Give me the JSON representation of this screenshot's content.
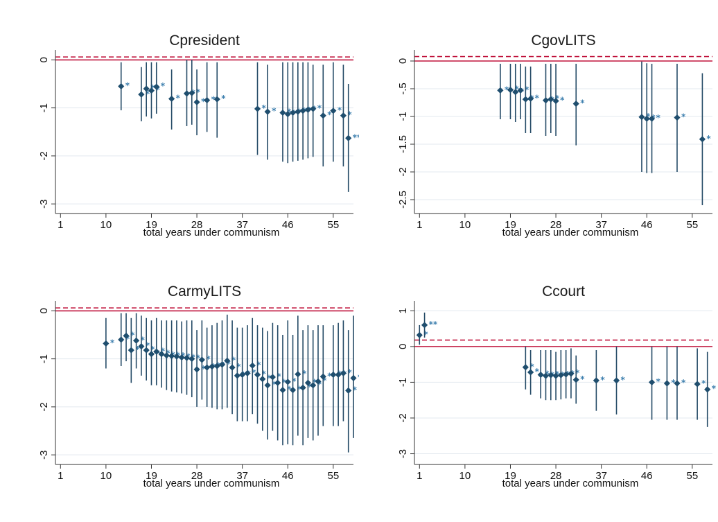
{
  "colors": {
    "marker": "#1f4e6e",
    "ci": "#244a66",
    "ref_solid": "#c0143c",
    "ref_dashed": "#c0143c",
    "grid": "#e3e9ef",
    "frame": "#333333"
  },
  "chart_data": [
    {
      "type": "scatter",
      "title": "Cpresident",
      "xlabel": "total years under communism",
      "ylabel": "",
      "xlim": [
        0,
        59
      ],
      "ylim": [
        -3.2,
        0.15
      ],
      "xticks": [
        1,
        10,
        19,
        28,
        37,
        46,
        55
      ],
      "yticks": [
        0,
        -1,
        -2,
        -3
      ],
      "ytick_labels": [
        "0",
        "-1",
        "-2",
        "-3"
      ],
      "ref_solid": 0,
      "ref_dashed": 0.06,
      "grid": true,
      "points": [
        {
          "x": 13,
          "y": -0.55,
          "lo": -1.05,
          "hi": -0.05,
          "label": "*"
        },
        {
          "x": 17,
          "y": -0.72,
          "lo": -1.28,
          "hi": -0.15,
          "label": "*"
        },
        {
          "x": 18,
          "y": -0.6,
          "lo": -1.18,
          "hi": -0.05,
          "label": "*"
        },
        {
          "x": 19,
          "y": -0.64,
          "lo": -1.22,
          "hi": -0.05,
          "label": "*"
        },
        {
          "x": 20,
          "y": -0.56,
          "lo": -1.12,
          "hi": -0.05,
          "label": "*"
        },
        {
          "x": 23,
          "y": -0.81,
          "lo": -1.45,
          "hi": -0.2,
          "label": "*"
        },
        {
          "x": 26,
          "y": -0.7,
          "lo": -1.38,
          "hi": 0.0,
          "label": "*"
        },
        {
          "x": 27,
          "y": -0.69,
          "lo": -1.35,
          "hi": 0.0,
          "label": "*"
        },
        {
          "x": 28,
          "y": -0.88,
          "lo": -1.57,
          "hi": -0.2,
          "label": "*"
        },
        {
          "x": 30,
          "y": -0.84,
          "lo": -1.5,
          "hi": -0.05,
          "label": "*"
        },
        {
          "x": 32,
          "y": -0.82,
          "lo": -1.62,
          "hi": -0.05,
          "label": "*"
        },
        {
          "x": 40,
          "y": -1.02,
          "lo": -1.98,
          "hi": -0.05,
          "label": "*"
        },
        {
          "x": 42,
          "y": -1.08,
          "lo": -2.08,
          "hi": -0.1,
          "label": "*"
        },
        {
          "x": 45,
          "y": -1.1,
          "lo": -2.12,
          "hi": -0.05,
          "label": "*"
        },
        {
          "x": 46,
          "y": -1.13,
          "lo": -2.15,
          "hi": -0.05,
          "label": "*"
        },
        {
          "x": 47,
          "y": -1.1,
          "lo": -2.12,
          "hi": -0.05,
          "label": "*"
        },
        {
          "x": 48,
          "y": -1.08,
          "lo": -2.1,
          "hi": -0.05,
          "label": "*"
        },
        {
          "x": 49,
          "y": -1.06,
          "lo": -2.08,
          "hi": -0.05,
          "label": "*"
        },
        {
          "x": 50,
          "y": -1.04,
          "lo": -2.05,
          "hi": -0.05,
          "label": "*"
        },
        {
          "x": 51,
          "y": -1.02,
          "lo": -2.02,
          "hi": -0.1,
          "label": "*"
        },
        {
          "x": 53,
          "y": -1.16,
          "lo": -2.22,
          "hi": -0.1,
          "label": "*"
        },
        {
          "x": 55,
          "y": -1.06,
          "lo": -2.12,
          "hi": -0.05,
          "label": "*"
        },
        {
          "x": 57,
          "y": -1.16,
          "lo": -2.22,
          "hi": -0.1,
          "label": "*"
        },
        {
          "x": 58,
          "y": -1.63,
          "lo": -2.75,
          "hi": -0.5,
          "label": "**"
        }
      ]
    },
    {
      "type": "scatter",
      "title": "CgovLITS",
      "xlabel": "total years under communism",
      "ylabel": "",
      "xlim": [
        0,
        59
      ],
      "ylim": [
        -2.75,
        0.15
      ],
      "xticks": [
        1,
        10,
        19,
        28,
        37,
        46,
        55
      ],
      "yticks": [
        0,
        -0.5,
        -1,
        -1.5,
        -2,
        -2.5
      ],
      "ytick_labels": [
        "0",
        "-.5",
        "-1",
        "-1.5",
        "-2",
        "-2.5"
      ],
      "ref_solid": 0,
      "ref_dashed": 0.08,
      "grid": true,
      "points": [
        {
          "x": 17,
          "y": -0.53,
          "lo": -1.05,
          "hi": -0.05,
          "label": "*"
        },
        {
          "x": 19,
          "y": -0.52,
          "lo": -1.05,
          "hi": -0.05,
          "label": "*"
        },
        {
          "x": 20,
          "y": -0.56,
          "lo": -1.1,
          "hi": -0.05,
          "label": "*"
        },
        {
          "x": 21,
          "y": -0.53,
          "lo": -1.05,
          "hi": -0.05,
          "label": "*"
        },
        {
          "x": 22,
          "y": -0.69,
          "lo": -1.3,
          "hi": -0.1,
          "label": "*"
        },
        {
          "x": 23,
          "y": -0.68,
          "lo": -1.3,
          "hi": -0.1,
          "label": "*"
        },
        {
          "x": 26,
          "y": -0.71,
          "lo": -1.35,
          "hi": -0.05,
          "label": "*"
        },
        {
          "x": 27,
          "y": -0.69,
          "lo": -1.3,
          "hi": -0.05,
          "label": "*"
        },
        {
          "x": 28,
          "y": -0.72,
          "lo": -1.35,
          "hi": -0.05,
          "label": "*"
        },
        {
          "x": 32,
          "y": -0.77,
          "lo": -1.52,
          "hi": -0.05,
          "label": "*"
        },
        {
          "x": 45,
          "y": -1.01,
          "lo": -2.0,
          "hi": -0.01,
          "label": "*"
        },
        {
          "x": 46,
          "y": -1.04,
          "lo": -2.02,
          "hi": -0.04,
          "label": "*"
        },
        {
          "x": 47,
          "y": -1.04,
          "lo": -2.02,
          "hi": -0.05,
          "label": "*"
        },
        {
          "x": 52,
          "y": -1.02,
          "lo": -2.0,
          "hi": -0.05,
          "label": "*"
        },
        {
          "x": 57,
          "y": -1.41,
          "lo": -2.6,
          "hi": -0.22,
          "label": "*"
        }
      ]
    },
    {
      "type": "scatter",
      "title": "CarmyLITS",
      "xlabel": "total years under communism",
      "ylabel": "",
      "xlim": [
        0,
        59
      ],
      "ylim": [
        -3.2,
        0.15
      ],
      "xticks": [
        1,
        10,
        19,
        28,
        37,
        46,
        55
      ],
      "yticks": [
        0,
        -1,
        -2,
        -3
      ],
      "ytick_labels": [
        "0",
        "-1",
        "-2",
        "-3"
      ],
      "ref_solid": 0,
      "ref_dashed": 0.06,
      "grid": true,
      "points": [
        {
          "x": 10,
          "y": -0.68,
          "lo": -1.2,
          "hi": -0.15,
          "label": "*"
        },
        {
          "x": 13,
          "y": -0.6,
          "lo": -1.15,
          "hi": -0.05,
          "label": "*"
        },
        {
          "x": 14,
          "y": -0.52,
          "lo": -1.05,
          "hi": -0.05,
          "label": "*"
        },
        {
          "x": 15,
          "y": -0.82,
          "lo": -1.5,
          "hi": -0.15,
          "label": "*"
        },
        {
          "x": 16,
          "y": -0.62,
          "lo": -1.2,
          "hi": -0.05,
          "label": "*"
        },
        {
          "x": 17,
          "y": -0.74,
          "lo": -1.35,
          "hi": -0.1,
          "label": "*"
        },
        {
          "x": 18,
          "y": -0.82,
          "lo": -1.45,
          "hi": -0.15,
          "label": "*"
        },
        {
          "x": 19,
          "y": -0.9,
          "lo": -1.55,
          "hi": -0.2,
          "label": "*"
        },
        {
          "x": 20,
          "y": -0.85,
          "lo": -1.55,
          "hi": -0.15,
          "label": "*"
        },
        {
          "x": 21,
          "y": -0.9,
          "lo": -1.6,
          "hi": -0.2,
          "label": "*"
        },
        {
          "x": 22,
          "y": -0.93,
          "lo": -1.65,
          "hi": -0.2,
          "label": "*"
        },
        {
          "x": 23,
          "y": -0.94,
          "lo": -1.68,
          "hi": -0.2,
          "label": "*"
        },
        {
          "x": 24,
          "y": -0.95,
          "lo": -1.7,
          "hi": -0.2,
          "label": "*"
        },
        {
          "x": 25,
          "y": -0.97,
          "lo": -1.72,
          "hi": -0.22,
          "label": "*"
        },
        {
          "x": 26,
          "y": -0.98,
          "lo": -1.75,
          "hi": -0.2,
          "label": "*"
        },
        {
          "x": 27,
          "y": -1.0,
          "lo": -1.8,
          "hi": -0.2,
          "label": "*"
        },
        {
          "x": 28,
          "y": -1.22,
          "lo": -2.0,
          "hi": -0.4,
          "label": "*"
        },
        {
          "x": 29,
          "y": -1.02,
          "lo": -1.85,
          "hi": -0.2,
          "label": "*"
        },
        {
          "x": 30,
          "y": -1.18,
          "lo": -2.0,
          "hi": -0.35,
          "label": "*"
        },
        {
          "x": 31,
          "y": -1.16,
          "lo": -2.02,
          "hi": -0.3,
          "label": "*"
        },
        {
          "x": 32,
          "y": -1.15,
          "lo": -2.05,
          "hi": -0.25,
          "label": "*"
        },
        {
          "x": 33,
          "y": -1.12,
          "lo": -2.05,
          "hi": -0.2,
          "label": "*"
        },
        {
          "x": 34,
          "y": -1.04,
          "lo": -2.02,
          "hi": -0.08,
          "label": "*"
        },
        {
          "x": 35,
          "y": -1.18,
          "lo": -2.15,
          "hi": -0.2,
          "label": "*"
        },
        {
          "x": 36,
          "y": -1.35,
          "lo": -2.3,
          "hi": -0.35,
          "label": "*"
        },
        {
          "x": 37,
          "y": -1.33,
          "lo": -2.3,
          "hi": -0.35,
          "label": "*"
        },
        {
          "x": 38,
          "y": -1.3,
          "lo": -2.3,
          "hi": -0.3,
          "label": "*"
        },
        {
          "x": 39,
          "y": -1.14,
          "lo": -2.15,
          "hi": -0.15,
          "label": "*"
        },
        {
          "x": 40,
          "y": -1.33,
          "lo": -2.35,
          "hi": -0.3,
          "label": "*"
        },
        {
          "x": 41,
          "y": -1.42,
          "lo": -2.5,
          "hi": -0.35,
          "label": "*"
        },
        {
          "x": 42,
          "y": -1.55,
          "lo": -2.68,
          "hi": -0.42,
          "label": "*"
        },
        {
          "x": 43,
          "y": -1.38,
          "lo": -2.5,
          "hi": -0.25,
          "label": "*"
        },
        {
          "x": 44,
          "y": -1.5,
          "lo": -2.7,
          "hi": -0.3,
          "label": "*"
        },
        {
          "x": 45,
          "y": -1.65,
          "lo": -2.8,
          "hi": -0.5,
          "label": "*"
        },
        {
          "x": 46,
          "y": -1.48,
          "lo": -2.78,
          "hi": -0.2,
          "label": "*"
        },
        {
          "x": 47,
          "y": -1.65,
          "lo": -2.8,
          "hi": -0.5,
          "label": "*"
        },
        {
          "x": 48,
          "y": -1.32,
          "lo": -2.6,
          "hi": -0.1,
          "label": "*"
        },
        {
          "x": 49,
          "y": -1.6,
          "lo": -2.8,
          "hi": -0.4,
          "label": "*"
        },
        {
          "x": 50,
          "y": -1.5,
          "lo": -2.65,
          "hi": -0.3,
          "label": "*"
        },
        {
          "x": 51,
          "y": -1.55,
          "lo": -2.7,
          "hi": -0.4,
          "label": "*"
        },
        {
          "x": 52,
          "y": -1.47,
          "lo": -2.6,
          "hi": -0.3,
          "label": "*"
        },
        {
          "x": 53,
          "y": -1.37,
          "lo": -2.4,
          "hi": -0.3,
          "label": "*"
        },
        {
          "x": 55,
          "y": -1.33,
          "lo": -2.4,
          "hi": -0.3,
          "label": "*"
        },
        {
          "x": 56,
          "y": -1.33,
          "lo": -2.4,
          "hi": -0.25,
          "label": "*"
        },
        {
          "x": 57,
          "y": -1.3,
          "lo": -2.3,
          "hi": -0.2,
          "label": "*"
        },
        {
          "x": 58,
          "y": -1.66,
          "lo": -2.95,
          "hi": -0.4,
          "label": "*"
        },
        {
          "x": 59,
          "y": -1.4,
          "lo": -2.65,
          "hi": -0.1,
          "label": "*"
        }
      ]
    },
    {
      "type": "scatter",
      "title": "Ccourt",
      "xlabel": "total years under communism",
      "ylabel": "",
      "xlim": [
        0,
        59
      ],
      "ylim": [
        -3.3,
        1.2
      ],
      "xticks": [
        1,
        10,
        19,
        28,
        37,
        46,
        55
      ],
      "yticks": [
        1,
        0,
        -1,
        -2,
        -3
      ],
      "ytick_labels": [
        "1",
        "0",
        "-1",
        "-2",
        "-3"
      ],
      "ref_solid": 0,
      "ref_dashed": 0.18,
      "grid": true,
      "points": [
        {
          "x": 1,
          "y": 0.32,
          "lo": 0.05,
          "hi": 0.6,
          "label": "*"
        },
        {
          "x": 2,
          "y": 0.6,
          "lo": 0.25,
          "hi": 0.95,
          "label": "**"
        },
        {
          "x": 22,
          "y": -0.58,
          "lo": -1.2,
          "hi": 0.0,
          "label": "*"
        },
        {
          "x": 23,
          "y": -0.72,
          "lo": -1.35,
          "hi": -0.1,
          "label": "*"
        },
        {
          "x": 25,
          "y": -0.79,
          "lo": -1.45,
          "hi": -0.1,
          "label": "*"
        },
        {
          "x": 26,
          "y": -0.82,
          "lo": -1.5,
          "hi": -0.1,
          "label": "*"
        },
        {
          "x": 27,
          "y": -0.8,
          "lo": -1.5,
          "hi": -0.1,
          "label": "*"
        },
        {
          "x": 28,
          "y": -0.82,
          "lo": -1.5,
          "hi": -0.15,
          "label": "*"
        },
        {
          "x": 29,
          "y": -0.8,
          "lo": -1.48,
          "hi": -0.1,
          "label": "*"
        },
        {
          "x": 30,
          "y": -0.78,
          "lo": -1.45,
          "hi": -0.1,
          "label": "*"
        },
        {
          "x": 31,
          "y": -0.76,
          "lo": -1.45,
          "hi": -0.05,
          "label": "*"
        },
        {
          "x": 32,
          "y": -0.93,
          "lo": -1.6,
          "hi": -0.25,
          "label": "*"
        },
        {
          "x": 36,
          "y": -0.95,
          "lo": -1.8,
          "hi": -0.1,
          "label": "*"
        },
        {
          "x": 40,
          "y": -0.95,
          "lo": -1.9,
          "hi": 0.0,
          "label": "*"
        },
        {
          "x": 47,
          "y": -1.0,
          "lo": -2.05,
          "hi": 0.0,
          "label": "*"
        },
        {
          "x": 50,
          "y": -1.03,
          "lo": -2.05,
          "hi": 0.0,
          "label": "*"
        },
        {
          "x": 52,
          "y": -1.03,
          "lo": -2.05,
          "hi": 0.0,
          "label": "*"
        },
        {
          "x": 56,
          "y": -1.05,
          "lo": -2.05,
          "hi": -0.05,
          "label": "*"
        },
        {
          "x": 58,
          "y": -1.2,
          "lo": -2.25,
          "hi": -0.15,
          "label": "*"
        }
      ]
    }
  ]
}
